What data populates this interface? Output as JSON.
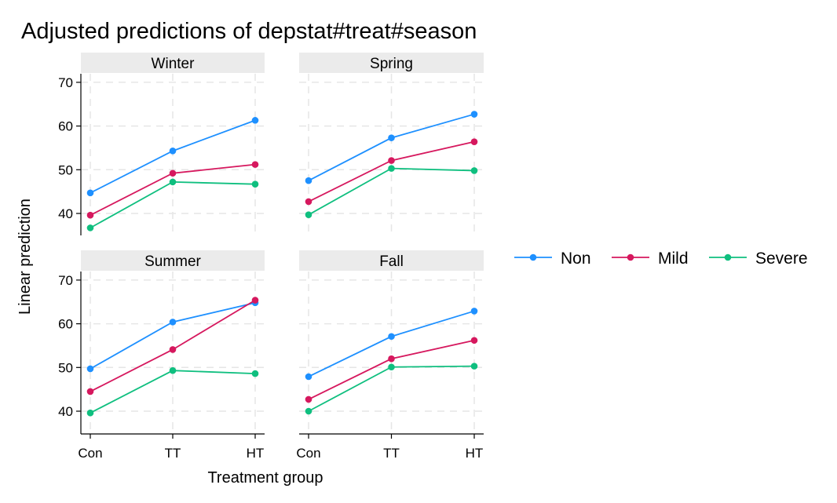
{
  "chart_data": {
    "type": "line",
    "title": "Adjusted predictions of depstat#treat#season",
    "xlabel": "Treatment group",
    "ylabel": "Linear prediction",
    "categories": [
      "Con",
      "TT",
      "HT"
    ],
    "yticks": [
      40,
      50,
      60,
      70
    ],
    "ylim": [
      34.5,
      72
    ],
    "grid": true,
    "legend_position": "right",
    "series_colors": [
      "#1e90ff",
      "#d6185e",
      "#0fbf7f"
    ],
    "panels": [
      {
        "name": "Winter",
        "series": [
          {
            "name": "Non",
            "values": [
              44.7,
              54.3,
              61.3
            ]
          },
          {
            "name": "Mild",
            "values": [
              39.6,
              49.2,
              51.2
            ]
          },
          {
            "name": "Severe",
            "values": [
              36.7,
              47.2,
              46.7
            ]
          }
        ]
      },
      {
        "name": "Spring",
        "series": [
          {
            "name": "Non",
            "values": [
              47.5,
              57.3,
              62.7
            ]
          },
          {
            "name": "Mild",
            "values": [
              42.7,
              52.1,
              56.4
            ]
          },
          {
            "name": "Severe",
            "values": [
              39.7,
              50.3,
              49.8
            ]
          }
        ]
      },
      {
        "name": "Summer",
        "series": [
          {
            "name": "Non",
            "values": [
              49.7,
              60.4,
              64.8
            ]
          },
          {
            "name": "Mild",
            "values": [
              44.5,
              54.1,
              65.4
            ]
          },
          {
            "name": "Severe",
            "values": [
              39.6,
              49.3,
              48.6
            ]
          }
        ]
      },
      {
        "name": "Fall",
        "series": [
          {
            "name": "Non",
            "values": [
              47.9,
              57.1,
              62.9
            ]
          },
          {
            "name": "Mild",
            "values": [
              42.7,
              52.0,
              56.2
            ]
          },
          {
            "name": "Severe",
            "values": [
              40.0,
              50.1,
              50.3
            ]
          }
        ]
      }
    ]
  }
}
